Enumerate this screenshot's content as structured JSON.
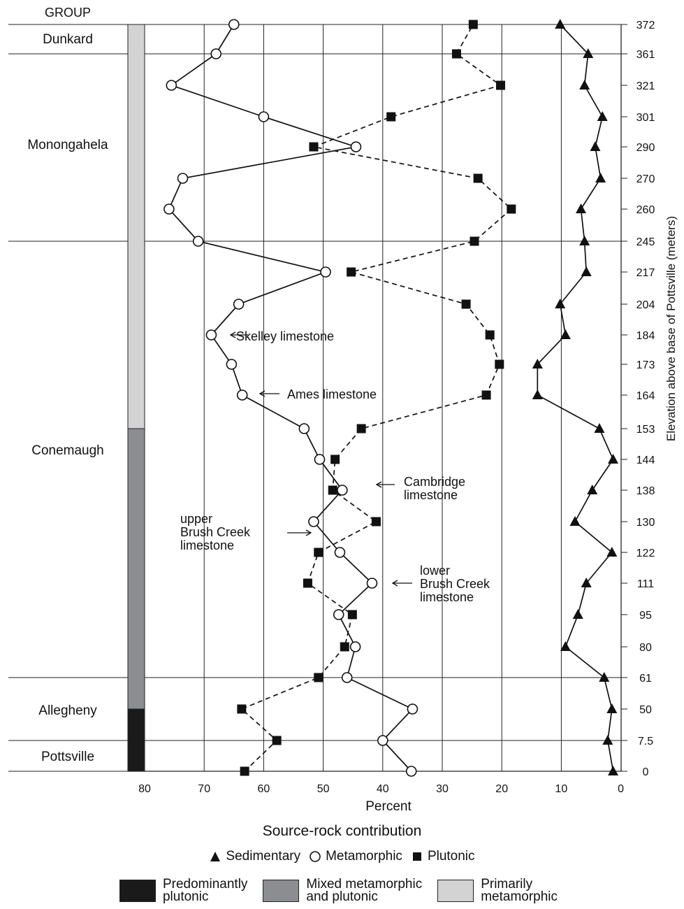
{
  "chart_data": {
    "type": "line",
    "title": "",
    "group_header": "GROUP",
    "xlabel": "Percent",
    "ylabel": "Elevation above base of Pottsville (meters)",
    "subtitle": "Source-rock contribution",
    "xlim": [
      0,
      80
    ],
    "x_reversed": true,
    "x_ticks": [
      "80",
      "70",
      "60",
      "50",
      "40",
      "30",
      "20",
      "10",
      "0"
    ],
    "y_categories": [
      "0",
      "7.5",
      "50",
      "61",
      "80",
      "95",
      "111",
      "122",
      "130",
      "138",
      "144",
      "153",
      "164",
      "173",
      "184",
      "204",
      "217",
      "245",
      "260",
      "270",
      "290",
      "301",
      "321",
      "361",
      "372"
    ],
    "series": [
      {
        "name": "Sedimentary",
        "marker": "triangle",
        "line": "solid",
        "values": [
          1.3,
          2.2,
          1.5,
          2.8,
          9.3,
          7.2,
          5.8,
          1.5,
          7.7,
          4.8,
          1.3,
          3.6,
          14.0,
          14.0,
          9.3,
          10.2,
          5.8,
          6.1,
          6.7,
          3.4,
          4.3,
          3.1,
          6.1,
          5.5,
          10.2
        ]
      },
      {
        "name": "Metamorphic",
        "marker": "circle-open",
        "line": "solid",
        "values": [
          35.2,
          40.0,
          35.0,
          46.0,
          44.6,
          47.4,
          41.8,
          47.2,
          51.6,
          46.8,
          50.6,
          53.2,
          63.6,
          65.4,
          68.8,
          64.2,
          49.6,
          71.0,
          75.9,
          73.6,
          44.5,
          60.0,
          75.5,
          68.0,
          65.0
        ]
      },
      {
        "name": "Plutonic",
        "marker": "square",
        "line": "dashed",
        "values": [
          63.2,
          57.8,
          63.7,
          50.8,
          46.4,
          45.1,
          52.6,
          50.8,
          41.1,
          48.4,
          48.0,
          43.6,
          22.6,
          20.4,
          22.0,
          26.0,
          45.3,
          24.6,
          18.4,
          24.0,
          51.6,
          38.6,
          20.2,
          27.6,
          24.8
        ]
      }
    ],
    "groups": [
      {
        "name": "Dunkard",
        "from_index": 23,
        "to_index": 24
      },
      {
        "name": "Monongahela",
        "from_index": 17,
        "to_index": 23
      },
      {
        "name": "Conemaugh",
        "from_index": 3,
        "to_index": 17
      },
      {
        "name": "Allegheny",
        "from_index": 1,
        "to_index": 3
      },
      {
        "name": "Pottsville",
        "from_index": 0,
        "to_index": 1
      }
    ],
    "composition_bar": [
      {
        "category": "plutonic",
        "from_index": 0,
        "to_index": 2
      },
      {
        "category": "mixed",
        "from_index": 2,
        "to_index": 11
      },
      {
        "category": "metamorphic",
        "from_index": 11,
        "to_index": 24
      }
    ],
    "annotations": [
      {
        "text": "Skelley limestone",
        "elevation": "184"
      },
      {
        "text": "Ames limestone",
        "elevation": "164"
      },
      {
        "text": "Cambridge\nlimestone",
        "elevation": "138"
      },
      {
        "text": "upper\nBrush Creek\nlimestone",
        "elevation": "122"
      },
      {
        "text": "lower\nBrush Creek\nlimestone",
        "elevation": "111"
      }
    ],
    "legend_placement": "bottom-center",
    "grid": true
  },
  "legend": {
    "series": [
      {
        "name": "Sedimentary",
        "icon": "filled-triangle-icon"
      },
      {
        "name": "Metamorphic",
        "icon": "open-circle-icon"
      },
      {
        "name": "Plutonic",
        "icon": "filled-square-icon"
      }
    ],
    "fills": [
      {
        "label": "Predominantly\nplutonic",
        "color": "#1a1a1a"
      },
      {
        "label": "Mixed metamorphic\nand plutonic",
        "color": "#8c8d90"
      },
      {
        "label": "Primarily\nmetamorphic",
        "color": "#d3d3d3"
      }
    ]
  },
  "colors": {
    "line": "#111111",
    "grid": "#222222"
  }
}
